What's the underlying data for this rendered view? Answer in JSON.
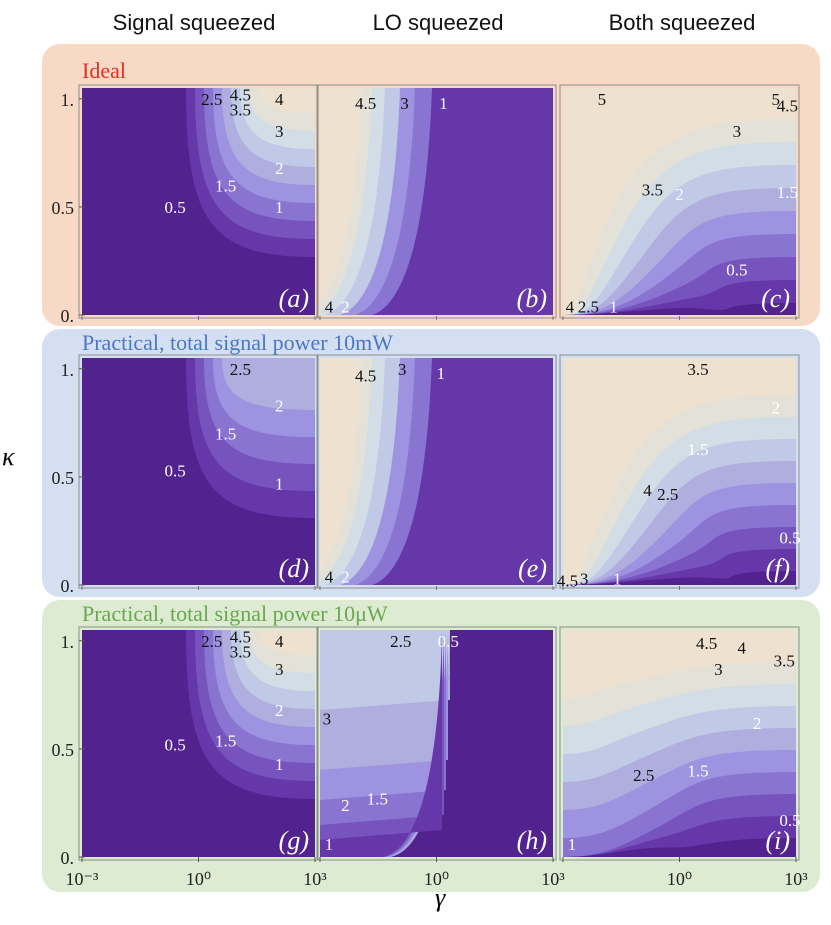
{
  "column_titles": [
    "Signal squeezed",
    "LO squeezed",
    "Both squeezed"
  ],
  "rows": [
    {
      "label": "Ideal",
      "label_color": "#e0301e",
      "band_color": "#f8d9c6"
    },
    {
      "label": "Practical, total signal power 10mW",
      "label_color": "#4a78c4",
      "band_color": "#d5dff2"
    },
    {
      "label": "Practical, total signal power 10μW",
      "label_color": "#6aa84f",
      "band_color": "#dcebd2"
    }
  ],
  "axes": {
    "xlabel": "γ",
    "ylabel": "κ"
  },
  "colors": {
    "levels": [
      "#52228f",
      "#6537a8",
      "#7653bd",
      "#8a74d2",
      "#9d93e0",
      "#b0addf",
      "#c0c9e6",
      "#d2dde6",
      "#e4e2d8",
      "#efe1cf"
    ]
  },
  "chart_data": [
    {
      "id": "a",
      "type": "contour",
      "panel_label": "(a)",
      "x_scale": "log",
      "xlim": [
        0.001,
        1000
      ],
      "ylim": [
        0,
        1.05
      ],
      "xticks": [
        "10⁻³",
        "10⁰",
        "10³"
      ],
      "yticks": [
        "0.",
        "0.5",
        "1."
      ],
      "contour_labels": [
        {
          "text": "2.5",
          "x": 2.2,
          "y": 1.0
        },
        {
          "text": "4.5",
          "x": 12,
          "y": 1.02
        },
        {
          "text": "4",
          "x": 120,
          "y": 1.0
        },
        {
          "text": "3.5",
          "x": 12,
          "y": 0.95
        },
        {
          "text": "3",
          "x": 120,
          "y": 0.85
        },
        {
          "text": "2",
          "x": 120,
          "y": 0.68
        },
        {
          "text": "1.5",
          "x": 5,
          "y": 0.6
        },
        {
          "text": "0.5",
          "x": 0.25,
          "y": 0.5
        },
        {
          "text": "1",
          "x": 120,
          "y": 0.5
        }
      ]
    },
    {
      "id": "b",
      "type": "contour",
      "panel_label": "(b)",
      "x_scale": "log",
      "xlim": [
        0.001,
        1000
      ],
      "ylim": [
        0,
        1.05
      ],
      "xticks": [
        "",
        "10⁰",
        "10³"
      ],
      "yticks": [],
      "contour_labels": [
        {
          "text": "4.5",
          "x": 0.015,
          "y": 0.98
        },
        {
          "text": "3",
          "x": 0.15,
          "y": 0.98
        },
        {
          "text": "1",
          "x": 1.5,
          "y": 0.98
        },
        {
          "text": "4",
          "x": 0.0017,
          "y": 0.04
        },
        {
          "text": "2",
          "x": 0.0045,
          "y": 0.04
        }
      ]
    },
    {
      "id": "c",
      "type": "contour",
      "panel_label": "(c)",
      "x_scale": "log",
      "xlim": [
        0.001,
        1000
      ],
      "ylim": [
        0,
        1.05
      ],
      "xticks": [
        "",
        "10⁰",
        "10³"
      ],
      "yticks": [],
      "contour_labels": [
        {
          "text": "5",
          "x": 0.01,
          "y": 1.0
        },
        {
          "text": "5",
          "x": 300,
          "y": 1.0
        },
        {
          "text": "4.5",
          "x": 600,
          "y": 0.97
        },
        {
          "text": "3",
          "x": 30,
          "y": 0.85
        },
        {
          "text": "3.5",
          "x": 0.2,
          "y": 0.58
        },
        {
          "text": "2",
          "x": 1,
          "y": 0.56
        },
        {
          "text": "1.5",
          "x": 600,
          "y": 0.57
        },
        {
          "text": "0.5",
          "x": 30,
          "y": 0.21
        },
        {
          "text": "4",
          "x": 0.0015,
          "y": 0.04
        },
        {
          "text": "2.5",
          "x": 0.0045,
          "y": 0.04
        },
        {
          "text": "1",
          "x": 0.02,
          "y": 0.04
        }
      ]
    },
    {
      "id": "d",
      "type": "contour",
      "panel_label": "(d)",
      "x_scale": "log",
      "xlim": [
        0.001,
        1000
      ],
      "ylim": [
        0,
        1.05
      ],
      "xticks": [
        "10⁻³",
        "10⁰",
        "10³"
      ],
      "yticks": [
        "0.",
        "0.5",
        "1."
      ],
      "contour_labels": [
        {
          "text": "2.5",
          "x": 12,
          "y": 1.0
        },
        {
          "text": "2",
          "x": 120,
          "y": 0.83
        },
        {
          "text": "1.5",
          "x": 5,
          "y": 0.7
        },
        {
          "text": "0.5",
          "x": 0.25,
          "y": 0.53
        },
        {
          "text": "1",
          "x": 120,
          "y": 0.47
        }
      ]
    },
    {
      "id": "e",
      "type": "contour",
      "panel_label": "(e)",
      "x_scale": "log",
      "xlim": [
        0.001,
        1000
      ],
      "ylim": [
        0,
        1.05
      ],
      "xticks": [
        "",
        "10⁰",
        "10³"
      ],
      "yticks": [],
      "contour_labels": [
        {
          "text": "4.5",
          "x": 0.015,
          "y": 0.97
        },
        {
          "text": "3",
          "x": 0.13,
          "y": 1.0
        },
        {
          "text": "1",
          "x": 1.3,
          "y": 0.98
        },
        {
          "text": "4",
          "x": 0.0017,
          "y": 0.04
        },
        {
          "text": "2",
          "x": 0.0045,
          "y": 0.04
        }
      ]
    },
    {
      "id": "f",
      "type": "contour",
      "panel_label": "(f)",
      "x_scale": "log",
      "xlim": [
        0.001,
        1000
      ],
      "ylim": [
        0,
        1.05
      ],
      "xticks": [
        "",
        "10⁰",
        "10³"
      ],
      "yticks": [],
      "contour_labels": [
        {
          "text": "3.5",
          "x": 3,
          "y": 1.0
        },
        {
          "text": "2",
          "x": 300,
          "y": 0.82
        },
        {
          "text": "1.5",
          "x": 3,
          "y": 0.63
        },
        {
          "text": "4",
          "x": 0.15,
          "y": 0.44
        },
        {
          "text": "2.5",
          "x": 0.5,
          "y": 0.42
        },
        {
          "text": "0.5",
          "x": 700,
          "y": 0.22
        },
        {
          "text": "4.5",
          "x": 0.0013,
          "y": 0.02
        },
        {
          "text": "3",
          "x": 0.0035,
          "y": 0.03
        },
        {
          "text": "1",
          "x": 0.025,
          "y": 0.03
        }
      ]
    },
    {
      "id": "g",
      "type": "contour",
      "panel_label": "(g)",
      "x_scale": "log",
      "xlim": [
        0.001,
        1000
      ],
      "ylim": [
        0,
        1.05
      ],
      "xticks": [
        "10⁻³",
        "10⁰",
        "10³"
      ],
      "yticks": [
        "0.",
        "0.5",
        "1."
      ],
      "contour_labels": [
        {
          "text": "2.5",
          "x": 2.2,
          "y": 1.0
        },
        {
          "text": "4.5",
          "x": 12,
          "y": 1.02
        },
        {
          "text": "4",
          "x": 120,
          "y": 1.0
        },
        {
          "text": "3.5",
          "x": 12,
          "y": 0.95
        },
        {
          "text": "3",
          "x": 120,
          "y": 0.87
        },
        {
          "text": "2",
          "x": 120,
          "y": 0.68
        },
        {
          "text": "1.5",
          "x": 5,
          "y": 0.54
        },
        {
          "text": "0.5",
          "x": 0.25,
          "y": 0.52
        },
        {
          "text": "1",
          "x": 120,
          "y": 0.43
        }
      ]
    },
    {
      "id": "h",
      "type": "contour",
      "panel_label": "(h)",
      "x_scale": "log",
      "xlim": [
        0.001,
        1000
      ],
      "ylim": [
        0,
        1.05
      ],
      "xticks": [
        "",
        "10⁰",
        "10³"
      ],
      "yticks": [],
      "contour_labels": [
        {
          "text": "2.5",
          "x": 0.12,
          "y": 1.0
        },
        {
          "text": "0.5",
          "x": 2,
          "y": 1.0
        },
        {
          "text": "3",
          "x": 0.0015,
          "y": 0.64
        },
        {
          "text": "2",
          "x": 0.0045,
          "y": 0.24
        },
        {
          "text": "1.5",
          "x": 0.03,
          "y": 0.27
        },
        {
          "text": "1",
          "x": 0.0017,
          "y": 0.06
        }
      ]
    },
    {
      "id": "i",
      "type": "contour",
      "panel_label": "(i)",
      "x_scale": "log",
      "xlim": [
        0.001,
        1000
      ],
      "ylim": [
        0,
        1.05
      ],
      "xticks": [
        "",
        "10⁰",
        "10³"
      ],
      "yticks": [],
      "contour_labels": [
        {
          "text": "4.5",
          "x": 5,
          "y": 0.99
        },
        {
          "text": "4",
          "x": 40,
          "y": 0.97
        },
        {
          "text": "3.5",
          "x": 500,
          "y": 0.91
        },
        {
          "text": "3",
          "x": 10,
          "y": 0.87
        },
        {
          "text": "2",
          "x": 100,
          "y": 0.62
        },
        {
          "text": "2.5",
          "x": 0.12,
          "y": 0.38
        },
        {
          "text": "1.5",
          "x": 3,
          "y": 0.4
        },
        {
          "text": "0.5",
          "x": 700,
          "y": 0.17
        },
        {
          "text": "1",
          "x": 0.0017,
          "y": 0.06
        }
      ]
    }
  ]
}
